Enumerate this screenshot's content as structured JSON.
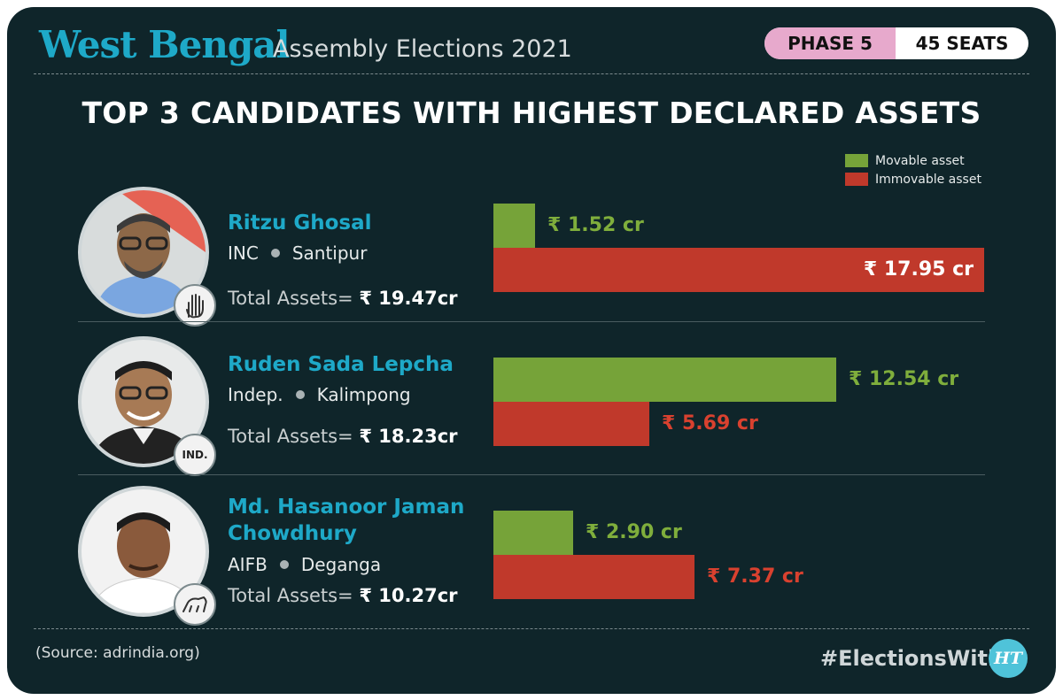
{
  "header": {
    "state": "West Bengal",
    "subtitle": "Assembly Elections 2021",
    "phase": "PHASE 5",
    "seats": "45 SEATS"
  },
  "title": "TOP 3 CANDIDATES WITH HIGHEST DECLARED ASSETS",
  "legend": {
    "movable": "Movable asset",
    "immovable": "Immovable asset"
  },
  "colors": {
    "movable": "#76a339",
    "immovable": "#c0392b",
    "movable_label": "#7fae3c",
    "immovable_label": "#d9412f"
  },
  "candidates": [
    {
      "name": "Ritzu Ghosal",
      "party": "INC",
      "constituency": "Santipur",
      "total_label": "Total Assets=",
      "total_value": "₹ 19.47cr",
      "badge_icon": "hand-symbol-icon",
      "badge_text": "",
      "movable_label": "₹ 1.52 cr",
      "immovable_label": "₹ 17.95 cr"
    },
    {
      "name": "Ruden Sada Lepcha",
      "party": "Indep.",
      "constituency": "Kalimpong",
      "total_label": "Total Assets=",
      "total_value": "₹ 18.23cr",
      "badge_icon": "independent-badge-icon",
      "badge_text": "IND.",
      "movable_label": "₹ 12.54 cr",
      "immovable_label": "₹ 5.69 cr"
    },
    {
      "name_line1": "Md. Hasanoor Jaman",
      "name_line2": "Chowdhury",
      "party": "AIFB",
      "constituency": "Deganga",
      "total_label": "Total Assets=",
      "total_value": "₹ 10.27cr",
      "badge_icon": "lion-symbol-icon",
      "badge_text": "",
      "movable_label": "₹ 2.90 cr",
      "immovable_label": "₹ 7.37 cr"
    }
  ],
  "chart_data": {
    "type": "bar",
    "categories": [
      "Ritzu Ghosal",
      "Ruden Sada Lepcha",
      "Md. Hasanoor Jaman Chowdhury"
    ],
    "series": [
      {
        "name": "Movable asset",
        "values": [
          1.52,
          12.54,
          2.9
        ]
      },
      {
        "name": "Immovable asset",
        "values": [
          17.95,
          5.69,
          7.37
        ]
      }
    ],
    "unit": "₹ cr",
    "xlim": [
      0,
      17.95
    ],
    "orientation": "horizontal",
    "legend": "top-right",
    "grid": false
  },
  "footer": {
    "source": "(Source: adrindia.org)",
    "hashtag": "#ElectionsWith",
    "logo": "HT"
  }
}
